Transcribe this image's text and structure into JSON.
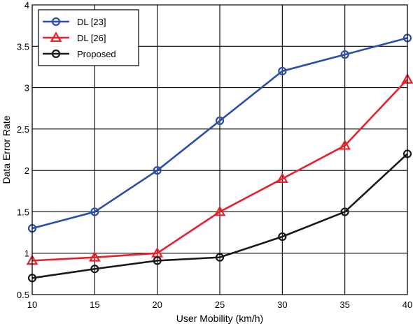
{
  "chart_data": {
    "type": "line",
    "title": "",
    "xlabel": "User Mobility (km/h)",
    "ylabel": "Data Error Rate",
    "xlim": [
      10,
      40
    ],
    "ylim": [
      0.5,
      4
    ],
    "x_ticks": [
      10,
      15,
      20,
      25,
      30,
      35,
      40
    ],
    "y_ticks": [
      0.5,
      1,
      1.5,
      2,
      2.5,
      3,
      3.5,
      4
    ],
    "x_tick_labels": [
      "10",
      "15",
      "20",
      "25",
      "30",
      "35",
      "40"
    ],
    "y_tick_labels": [
      "0.5",
      "1",
      "1.5",
      "2",
      "2.5",
      "3",
      "3.5",
      "4"
    ],
    "grid": true,
    "legend_position": "top-left",
    "x": [
      10,
      15,
      20,
      25,
      30,
      35,
      40
    ],
    "series": [
      {
        "name": "DL [23]",
        "color": "#2b4fa8",
        "marker": "circle",
        "values": [
          1.3,
          1.5,
          2.0,
          2.6,
          3.2,
          3.4,
          3.6
        ]
      },
      {
        "name": "DL [26]",
        "color": "#e8202a",
        "marker": "triangle",
        "values": [
          0.91,
          0.95,
          1.0,
          1.5,
          1.9,
          2.3,
          3.1
        ]
      },
      {
        "name": "Proposed",
        "color": "#1a1a1a",
        "marker": "circle",
        "values": [
          0.7,
          0.81,
          0.91,
          0.95,
          1.2,
          1.5,
          2.2
        ]
      }
    ]
  }
}
